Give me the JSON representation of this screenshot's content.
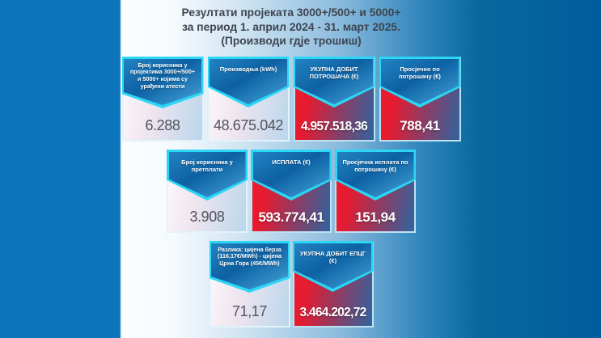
{
  "title": {
    "line1": "Резултати пројеката 3000+/500+ и 5000+",
    "line2": "за период 1. април 2024 - 31. март 2025.",
    "line3": "(Производи гдје трошиш)"
  },
  "rows": [
    {
      "boxes": [
        {
          "label": "Број корисника у пројектима 3000+/500+ и 5000+ којима су урађени атести",
          "value": "6.288"
        },
        {
          "label": "Производња (kWh)",
          "value": "48.675.042"
        },
        {
          "label": "УКУПНА ДОБИТ ПОТРОШАЧА (€)",
          "value": "4.957.518,36"
        },
        {
          "label": "Просјечно по потрошачу (€)",
          "value": "788,41"
        }
      ]
    },
    {
      "boxes": [
        {
          "label": "Број корисника у претплати",
          "value": "3.908"
        },
        {
          "label": "ИСПЛАТА (€)",
          "value": "593.774,41"
        },
        {
          "label": "Просјечна исплата по потрошачу (€)",
          "value": "151,94"
        }
      ]
    },
    {
      "boxes": [
        {
          "label": "Разлика: цијена берза (116,17€/MWh) - цијена Црна Гора (45€/MWh)",
          "value": "71,17"
        },
        {
          "label": "УКУПНА ДОБИТ ЕПЦГ (€)",
          "value": "3.464.202,72"
        }
      ]
    }
  ],
  "colors": {
    "left_band_blue": "#0b74ba",
    "background_dark_blue": "#005d9b",
    "header_banner_blue": "#0d61a3",
    "banner_outline_cyan": "#2bd7f4",
    "highlight_red": "#ec1b2c",
    "light_body_pink": "#fef8fb",
    "light_body_blue": "#bad7ec",
    "title_text": "#3e4450",
    "dark_value_text": "#54535e"
  },
  "chart_data": {
    "type": "table",
    "title": "Резултати пројеката 3000+/500+ и 5000+ за период 1. април 2024 - 31. март 2025. (Производи гдје трошиш)",
    "metrics": [
      {
        "label": "Број корисника у пројектима 3000+/500+ и 5000+ којима су урађени атести",
        "value": "6.288"
      },
      {
        "label": "Производња (kWh)",
        "value": "48.675.042"
      },
      {
        "label": "УКУПНА ДОБИТ ПОТРОШАЧА (€)",
        "value": "4.957.518,36"
      },
      {
        "label": "Просјечно по потрошачу (€)",
        "value": "788,41"
      },
      {
        "label": "Број корисника у претплати",
        "value": "3.908"
      },
      {
        "label": "ИСПЛАТА (€)",
        "value": "593.774,41"
      },
      {
        "label": "Просјечна исплата по потрошачу (€)",
        "value": "151,94"
      },
      {
        "label": "Разлика: цијена берза (116,17€/MWh) - цијена Црна Гора (45€/MWh)",
        "value": "71,17"
      },
      {
        "label": "УКУПНА ДОБИТ ЕПЦГ (€)",
        "value": "3.464.202,72"
      }
    ]
  }
}
